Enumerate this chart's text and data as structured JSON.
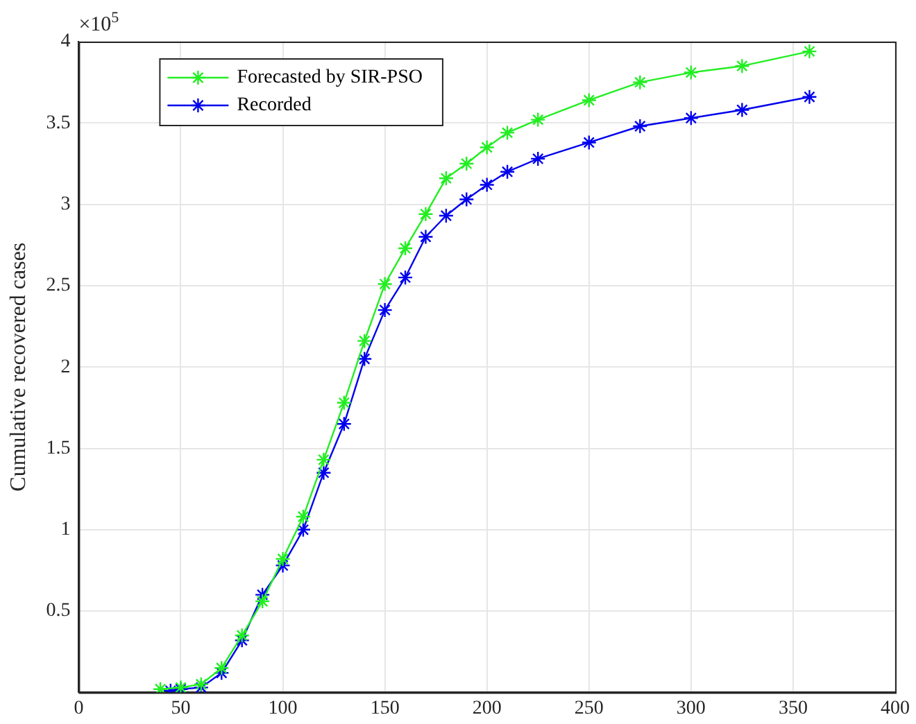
{
  "chart_data": {
    "type": "line",
    "ylabel": "Cumulative recovered cases",
    "annotations": [
      "×10$^{5}$"
    ],
    "xlim": [
      0,
      400
    ],
    "xticks": [
      0,
      50,
      100,
      150,
      200,
      250,
      300,
      350,
      400
    ],
    "ylim": [
      0,
      4
    ],
    "yticks": [
      0.5,
      1,
      1.5,
      2,
      2.5,
      3,
      3.5,
      4
    ],
    "grid": true,
    "legend": "top left",
    "marker": "cross",
    "line_style": "solid",
    "series": [
      {
        "name": "Forecasted by SIR-PSO",
        "color": "#22ee22",
        "x": [
          40,
          50,
          60,
          70,
          80,
          90,
          100,
          110,
          120,
          130,
          140,
          150,
          160,
          170,
          180,
          190,
          200,
          210,
          225,
          250,
          275,
          300,
          325,
          358
        ],
        "values": [
          0.02,
          0.03,
          0.05,
          0.15,
          0.35,
          0.56,
          0.82,
          1.08,
          1.43,
          1.78,
          2.16,
          2.51,
          2.73,
          2.94,
          3.16,
          3.25,
          3.35,
          3.44,
          3.52,
          3.64,
          3.75,
          3.81,
          3.85,
          3.94
        ]
      },
      {
        "name": "Recorded",
        "color": "#0000ee",
        "x": [
          45,
          50,
          60,
          70,
          80,
          90,
          100,
          110,
          120,
          130,
          140,
          150,
          160,
          170,
          180,
          190,
          200,
          210,
          225,
          250,
          275,
          300,
          325,
          358
        ],
        "values": [
          0.01,
          0.02,
          0.03,
          0.12,
          0.32,
          0.6,
          0.78,
          1.0,
          1.35,
          1.65,
          2.05,
          2.35,
          2.55,
          2.8,
          2.93,
          3.03,
          3.12,
          3.2,
          3.28,
          3.38,
          3.48,
          3.53,
          3.58,
          3.66
        ]
      }
    ]
  }
}
